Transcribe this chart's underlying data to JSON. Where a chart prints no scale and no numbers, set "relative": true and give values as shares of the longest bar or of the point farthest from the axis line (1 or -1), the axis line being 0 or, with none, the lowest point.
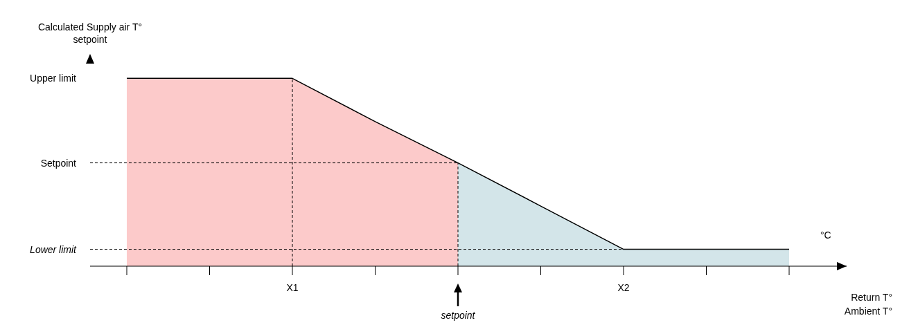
{
  "chart_data": {
    "type": "line",
    "relative": true,
    "ylabel": "Calculated Supply air T° setpoint",
    "xlabel": "Return T° Ambient T°",
    "categories": [
      null,
      null,
      "X1",
      null,
      null,
      null,
      "X2",
      null,
      null
    ],
    "series": [
      {
        "type": "area",
        "color": "#fccaca",
        "values": [
          1,
          1,
          1,
          0.77,
          0.55,
          null,
          null,
          null,
          null
        ]
      },
      {
        "type": "area",
        "color": "#d3e5e9",
        "values": [
          null,
          null,
          null,
          null,
          0.55,
          0.32,
          0.09,
          0.09,
          0.09
        ]
      },
      {
        "color": "#000000",
        "values": [
          1,
          1,
          1,
          0.77,
          0.55,
          0.32,
          0.09,
          0.09,
          0.09
        ]
      }
    ],
    "ref_lines": [
      {
        "axis": "x",
        "value": "X1",
        "line_style": "dashed",
        "color": "#000000"
      },
      {
        "axis": "y",
        "value": 0.55,
        "label": "Setpoint",
        "line_style": "dashed",
        "color": "#000000"
      },
      {
        "axis": "y",
        "value": 0.09,
        "label": "Lower limit",
        "line_style": "dashed",
        "color": "#000000"
      }
    ],
    "annotations": [
      "Upper limit",
      "°C",
      "setpoint"
    ],
    "marker": "none",
    "line_style": "solid",
    "grid": false,
    "legend": false
  }
}
